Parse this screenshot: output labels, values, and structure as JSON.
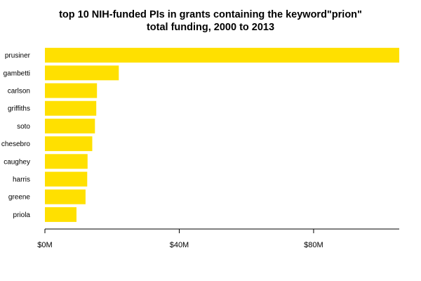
{
  "chart_data": {
    "type": "bar",
    "orientation": "horizontal",
    "title": "top 10 NIH-funded PIs in grants containing the keyword\"prion\"",
    "subtitle": "total funding, 2000 to 2013",
    "xlabel": "",
    "ylabel": "",
    "categories": [
      "prusiner",
      "gambetti",
      "carlson",
      "griffiths",
      "soto",
      "chesebro",
      "caughey",
      "harris",
      "greene",
      "priola"
    ],
    "values": [
      105.5,
      22,
      15.5,
      15.3,
      14.9,
      14.1,
      12.7,
      12.6,
      12.1,
      9.4
    ],
    "xlim": [
      0,
      105.5
    ],
    "ticks": [
      0,
      40,
      80
    ],
    "tick_labels": [
      "$0M",
      "$40M",
      "$80M"
    ],
    "value_unit": "$M",
    "bar_color": "#FFE000",
    "grid": false
  }
}
